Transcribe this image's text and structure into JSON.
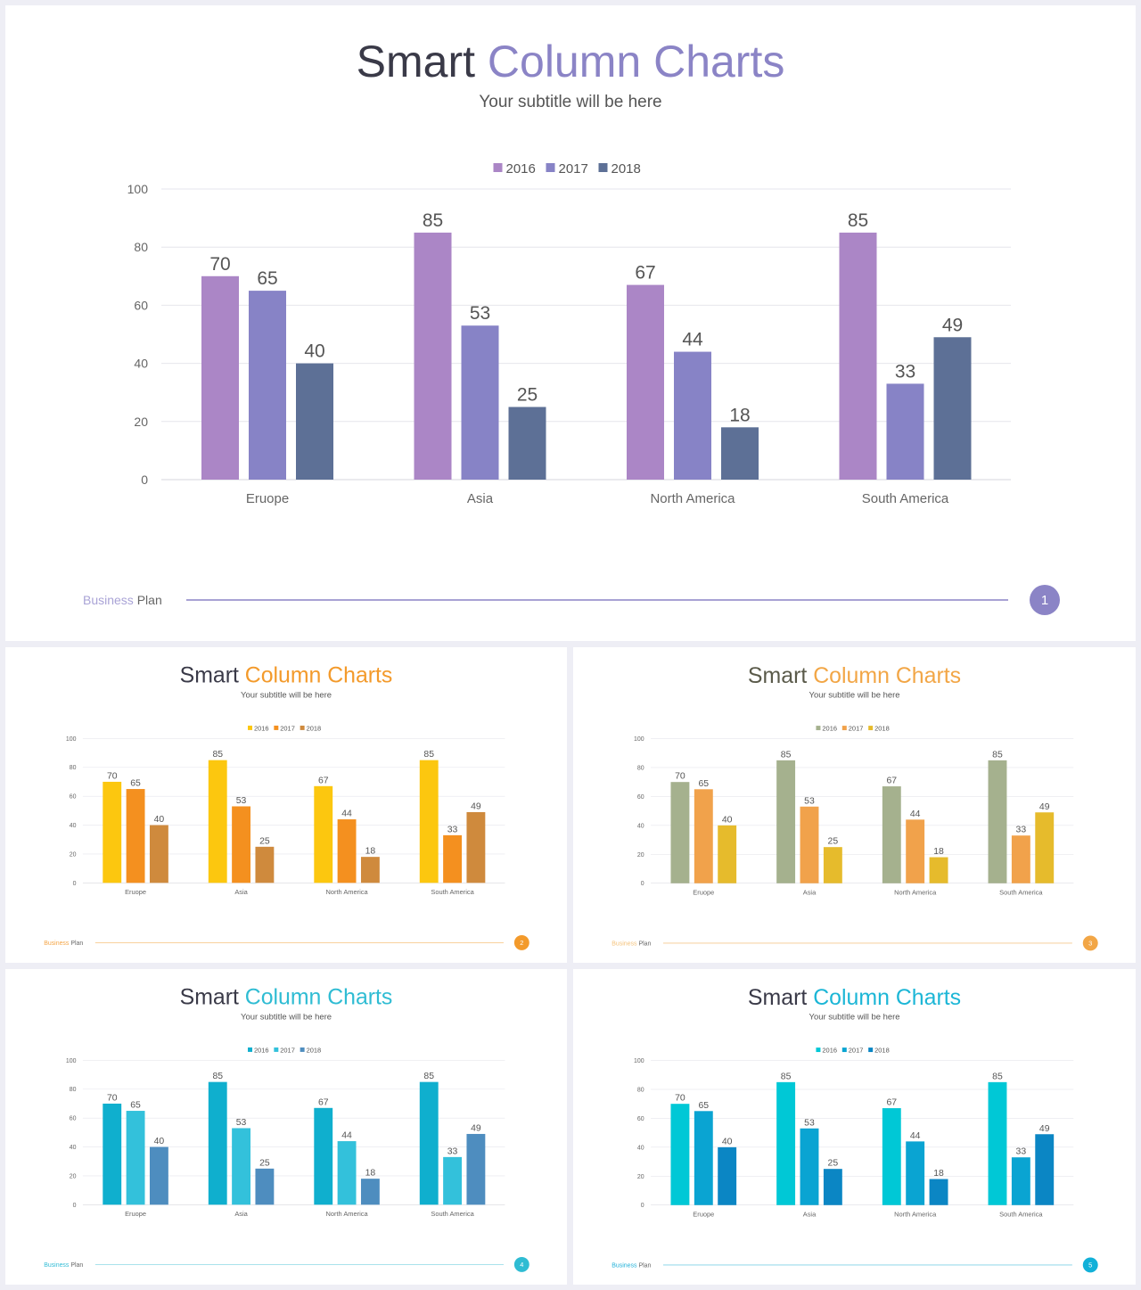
{
  "slides": [
    {
      "title_main": "Smart",
      "title_accent": "Column Charts",
      "subtitle": "Your subtitle will be here",
      "footer_left": "Business",
      "footer_right": "Plan",
      "page_number": "1",
      "colors": {
        "accent": "#8b84c6",
        "title_dark": "#3a3a48",
        "series": [
          "#ab86c6",
          "#8783c6",
          "#5d7096"
        ],
        "footer_line": "#8b84c6",
        "footer_word": "#a9a3d6",
        "badge": "#8b84c6"
      }
    },
    {
      "title_main": "Smart",
      "title_accent": "Column Charts",
      "subtitle": "Your subtitle will be here",
      "footer_left": "Business",
      "footer_right": "Plan",
      "page_number": "2",
      "colors": {
        "accent": "#f39a2b",
        "title_dark": "#3a3a48",
        "series": [
          "#fcc70f",
          "#f4901f",
          "#cf8a3d"
        ],
        "footer_line": "#f6c27c",
        "footer_word": "#f4a648",
        "badge": "#f39a2b"
      }
    },
    {
      "title_main": "Smart",
      "title_accent": "Column Charts",
      "subtitle": "Your subtitle will be here",
      "footer_left": "Business",
      "footer_right": "Plan",
      "page_number": "3",
      "colors": {
        "accent": "#f2a646",
        "title_dark": "#5a5a4a",
        "series": [
          "#a5b18e",
          "#f1a24b",
          "#e6bb2c"
        ],
        "footer_line": "#f6c98c",
        "footer_word": "#f4c27a",
        "badge": "#f2a646"
      }
    },
    {
      "title_main": "Smart",
      "title_accent": "Column Charts",
      "subtitle": "Your subtitle will be here",
      "footer_left": "Business",
      "footer_right": "Plan",
      "page_number": "4",
      "colors": {
        "accent": "#2fbcd3",
        "title_dark": "#3a3a48",
        "series": [
          "#0fafce",
          "#33c1db",
          "#4e8dbf"
        ],
        "footer_line": "#8ed8e6",
        "footer_word": "#34bdd6",
        "badge": "#2fbcd3"
      }
    },
    {
      "title_main": "Smart",
      "title_accent": "Column Charts",
      "subtitle": "Your subtitle will be here",
      "footer_left": "Business",
      "footer_right": "Plan",
      "page_number": "5",
      "colors": {
        "accent": "#1cb6d6",
        "title_dark": "#3a3a48",
        "series": [
          "#00c8d6",
          "#0aa4d2",
          "#0b86c4"
        ],
        "footer_line": "#7fd0e6",
        "footer_word": "#1fb0d8",
        "badge": "#12b0d8"
      }
    }
  ],
  "chart_data": {
    "type": "bar",
    "categories": [
      "Eruope",
      "Asia",
      "North America",
      "South America"
    ],
    "series": [
      {
        "name": "2016",
        "values": [
          70,
          85,
          67,
          85
        ]
      },
      {
        "name": "2017",
        "values": [
          65,
          53,
          44,
          33
        ]
      },
      {
        "name": "2018",
        "values": [
          40,
          25,
          18,
          49
        ]
      }
    ],
    "ylim": [
      0,
      100
    ],
    "yticks": [
      0,
      20,
      40,
      60,
      80,
      100
    ],
    "grid": true,
    "legend": "top-center",
    "data_labels": true
  }
}
